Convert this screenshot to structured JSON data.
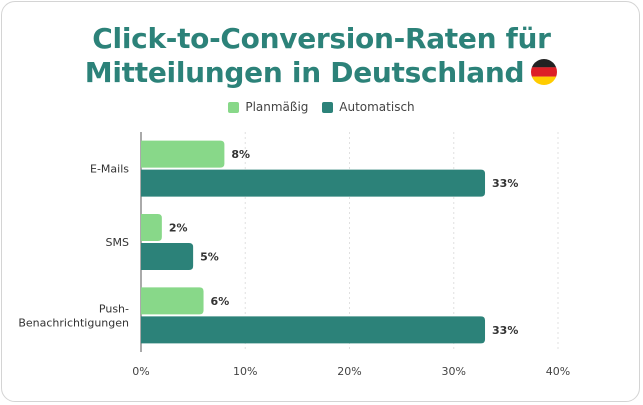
{
  "title_line1": "Click-to-Conversion-Raten für",
  "title_line2": "Mitteilungen in Deutschland",
  "flag_icon": "germany-flag-icon",
  "colors": {
    "planmaessig": "#88d889",
    "automatisch": "#2c8279",
    "title": "#2c8279",
    "grid": "#e0e0e0"
  },
  "chart_data": {
    "type": "bar",
    "orientation": "horizontal",
    "title": "Click-to-Conversion-Raten für Mitteilungen in Deutschland",
    "categories": [
      [
        "E-Mails"
      ],
      [
        "SMS"
      ],
      [
        "Push-",
        "Benachrichtigungen"
      ]
    ],
    "series": [
      {
        "name": "Planmäßig",
        "color": "#88d889",
        "values": [
          8,
          2,
          6
        ],
        "labels": [
          "8%",
          "2%",
          "6%"
        ]
      },
      {
        "name": "Automatisch",
        "color": "#2c8279",
        "values": [
          33,
          5,
          33
        ],
        "labels": [
          "33%",
          "5%",
          "33%"
        ]
      }
    ],
    "xlim": [
      0,
      40
    ],
    "xticks": [
      0,
      10,
      20,
      30,
      40
    ],
    "xtick_labels": [
      "0%",
      "10%",
      "20%",
      "30%",
      "40%"
    ],
    "grid": true,
    "legend_position": "top-center"
  }
}
